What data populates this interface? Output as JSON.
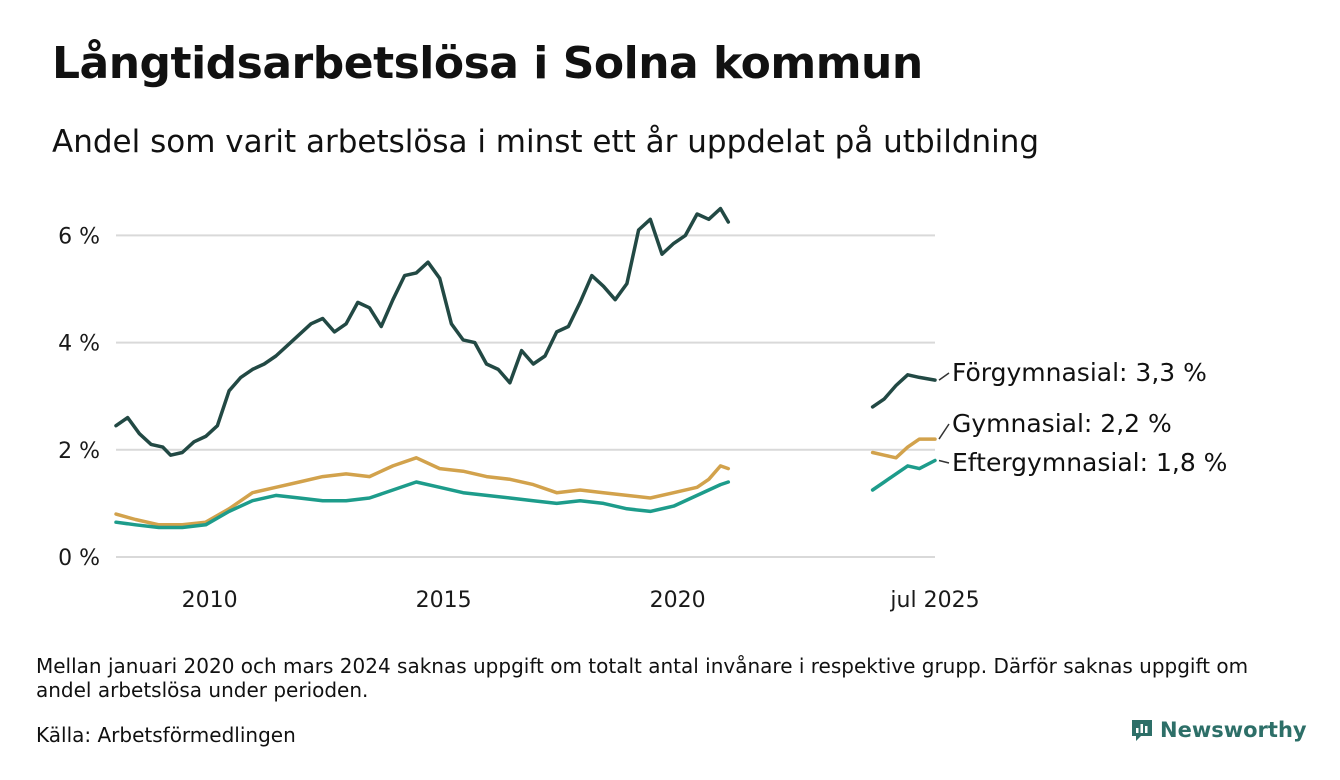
{
  "title": "Långtidsarbetslösa i Solna kommun",
  "subtitle": "Andel som varit arbetslösa i minst ett år uppdelat på utbildning",
  "note": "Mellan januari 2020 och mars 2024 saknas uppgift om totalt antal invånare i respektive grupp. Därför saknas uppgift om andel arbetslösa under perioden.",
  "source": "Källa: Arbetsförmedlingen",
  "brand": "Newsworthy",
  "colors": {
    "forgymnasial": "#224944",
    "gymnasial": "#d2a24c",
    "eftergymnasial": "#1d9c8b",
    "grid": "#d9d9d9",
    "brand": "#2d6f68"
  },
  "chart_data": {
    "type": "line",
    "title": "Långtidsarbetslösa i Solna kommun",
    "xlabel": "",
    "ylabel": "",
    "ylim": [
      0,
      6.5
    ],
    "y_ticks": [
      0,
      2,
      4,
      6
    ],
    "y_tick_labels": [
      "0 %",
      "2 %",
      "4 %",
      "6 %"
    ],
    "x_tick_labels": [
      "2010",
      "2015",
      "2020",
      "jul 2025"
    ],
    "x_tick_positions": [
      "2010-01",
      "2015-01",
      "2020-01",
      "2025-07"
    ],
    "xlim": [
      "2008-01",
      "2025-07"
    ],
    "grid": true,
    "legend": "direct labels at line ends",
    "gap": [
      "2020-12",
      "2024-03"
    ],
    "series": [
      {
        "name": "Förgymnasial",
        "end_label": "Förgymnasial: 3,3 %",
        "color": "#224944",
        "points": [
          [
            "2008-01",
            2.45
          ],
          [
            "2008-04",
            2.6
          ],
          [
            "2008-07",
            2.3
          ],
          [
            "2008-10",
            2.1
          ],
          [
            "2009-01",
            2.05
          ],
          [
            "2009-03",
            1.9
          ],
          [
            "2009-06",
            1.95
          ],
          [
            "2009-09",
            2.15
          ],
          [
            "2009-12",
            2.25
          ],
          [
            "2010-03",
            2.45
          ],
          [
            "2010-06",
            3.1
          ],
          [
            "2010-09",
            3.35
          ],
          [
            "2010-12",
            3.5
          ],
          [
            "2011-03",
            3.6
          ],
          [
            "2011-06",
            3.75
          ],
          [
            "2011-09",
            3.95
          ],
          [
            "2011-12",
            4.15
          ],
          [
            "2012-03",
            4.35
          ],
          [
            "2012-06",
            4.45
          ],
          [
            "2012-09",
            4.2
          ],
          [
            "2012-12",
            4.35
          ],
          [
            "2013-03",
            4.75
          ],
          [
            "2013-06",
            4.65
          ],
          [
            "2013-09",
            4.3
          ],
          [
            "2013-12",
            4.8
          ],
          [
            "2014-03",
            5.25
          ],
          [
            "2014-06",
            5.3
          ],
          [
            "2014-09",
            5.5
          ],
          [
            "2014-12",
            5.2
          ],
          [
            "2015-03",
            4.35
          ],
          [
            "2015-06",
            4.05
          ],
          [
            "2015-09",
            4.0
          ],
          [
            "2015-12",
            3.6
          ],
          [
            "2016-03",
            3.5
          ],
          [
            "2016-06",
            3.25
          ],
          [
            "2016-09",
            3.85
          ],
          [
            "2016-12",
            3.6
          ],
          [
            "2017-03",
            3.75
          ],
          [
            "2017-06",
            4.2
          ],
          [
            "2017-09",
            4.3
          ],
          [
            "2017-12",
            4.75
          ],
          [
            "2018-03",
            5.25
          ],
          [
            "2018-06",
            5.05
          ],
          [
            "2018-09",
            4.8
          ],
          [
            "2018-12",
            5.1
          ],
          [
            "2019-03",
            6.1
          ],
          [
            "2019-06",
            6.3
          ],
          [
            "2019-09",
            5.65
          ],
          [
            "2019-12",
            5.85
          ],
          [
            "2020-03",
            6.0
          ],
          [
            "2020-06",
            6.4
          ],
          [
            "2020-09",
            6.3
          ],
          [
            "2020-12",
            6.5
          ],
          [
            "2021-02",
            6.25
          ],
          null,
          [
            "2024-03",
            2.8
          ],
          [
            "2024-06",
            2.95
          ],
          [
            "2024-09",
            3.2
          ],
          [
            "2024-12",
            3.4
          ],
          [
            "2025-03",
            3.35
          ],
          [
            "2025-07",
            3.3
          ]
        ]
      },
      {
        "name": "Gymnasial",
        "end_label": "Gymnasial: 2,2 %",
        "color": "#d2a24c",
        "points": [
          [
            "2008-01",
            0.8
          ],
          [
            "2008-06",
            0.7
          ],
          [
            "2008-12",
            0.6
          ],
          [
            "2009-06",
            0.6
          ],
          [
            "2009-12",
            0.65
          ],
          [
            "2010-06",
            0.9
          ],
          [
            "2010-12",
            1.2
          ],
          [
            "2011-06",
            1.3
          ],
          [
            "2011-12",
            1.4
          ],
          [
            "2012-06",
            1.5
          ],
          [
            "2012-12",
            1.55
          ],
          [
            "2013-06",
            1.5
          ],
          [
            "2013-12",
            1.7
          ],
          [
            "2014-06",
            1.85
          ],
          [
            "2014-12",
            1.65
          ],
          [
            "2015-06",
            1.6
          ],
          [
            "2015-12",
            1.5
          ],
          [
            "2016-06",
            1.45
          ],
          [
            "2016-12",
            1.35
          ],
          [
            "2017-06",
            1.2
          ],
          [
            "2017-12",
            1.25
          ],
          [
            "2018-06",
            1.2
          ],
          [
            "2018-12",
            1.15
          ],
          [
            "2019-06",
            1.1
          ],
          [
            "2019-12",
            1.2
          ],
          [
            "2020-06",
            1.3
          ],
          [
            "2020-09",
            1.45
          ],
          [
            "2020-12",
            1.7
          ],
          [
            "2021-02",
            1.65
          ],
          null,
          [
            "2024-03",
            1.95
          ],
          [
            "2024-06",
            1.9
          ],
          [
            "2024-09",
            1.85
          ],
          [
            "2024-12",
            2.05
          ],
          [
            "2025-03",
            2.2
          ],
          [
            "2025-07",
            2.2
          ]
        ]
      },
      {
        "name": "Eftergymnasial",
        "end_label": "Eftergymnasial: 1,8 %",
        "color": "#1d9c8b",
        "points": [
          [
            "2008-01",
            0.65
          ],
          [
            "2008-06",
            0.6
          ],
          [
            "2008-12",
            0.55
          ],
          [
            "2009-06",
            0.55
          ],
          [
            "2009-12",
            0.6
          ],
          [
            "2010-06",
            0.85
          ],
          [
            "2010-12",
            1.05
          ],
          [
            "2011-06",
            1.15
          ],
          [
            "2011-12",
            1.1
          ],
          [
            "2012-06",
            1.05
          ],
          [
            "2012-12",
            1.05
          ],
          [
            "2013-06",
            1.1
          ],
          [
            "2013-12",
            1.25
          ],
          [
            "2014-06",
            1.4
          ],
          [
            "2014-12",
            1.3
          ],
          [
            "2015-06",
            1.2
          ],
          [
            "2015-12",
            1.15
          ],
          [
            "2016-06",
            1.1
          ],
          [
            "2016-12",
            1.05
          ],
          [
            "2017-06",
            1.0
          ],
          [
            "2017-12",
            1.05
          ],
          [
            "2018-06",
            1.0
          ],
          [
            "2018-12",
            0.9
          ],
          [
            "2019-06",
            0.85
          ],
          [
            "2019-12",
            0.95
          ],
          [
            "2020-06",
            1.15
          ],
          [
            "2020-12",
            1.35
          ],
          [
            "2021-02",
            1.4
          ],
          null,
          [
            "2024-03",
            1.25
          ],
          [
            "2024-06",
            1.4
          ],
          [
            "2024-09",
            1.55
          ],
          [
            "2024-12",
            1.7
          ],
          [
            "2025-03",
            1.65
          ],
          [
            "2025-07",
            1.8
          ]
        ]
      }
    ]
  }
}
